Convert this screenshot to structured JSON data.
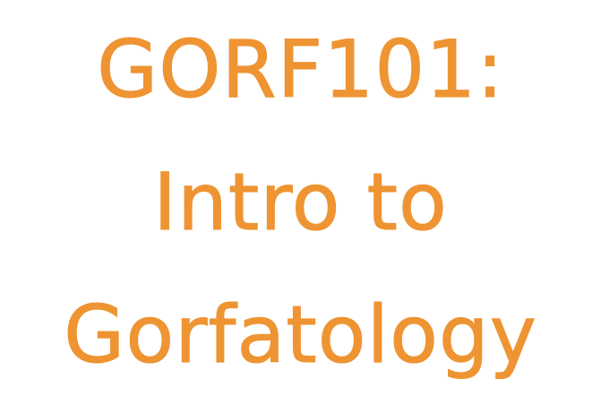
{
  "title": {
    "lines": [
      "GORF101:",
      "Intro to",
      "Gorfatology"
    ]
  },
  "colors": {
    "text": "#ee9432",
    "background": "#ffffff"
  }
}
